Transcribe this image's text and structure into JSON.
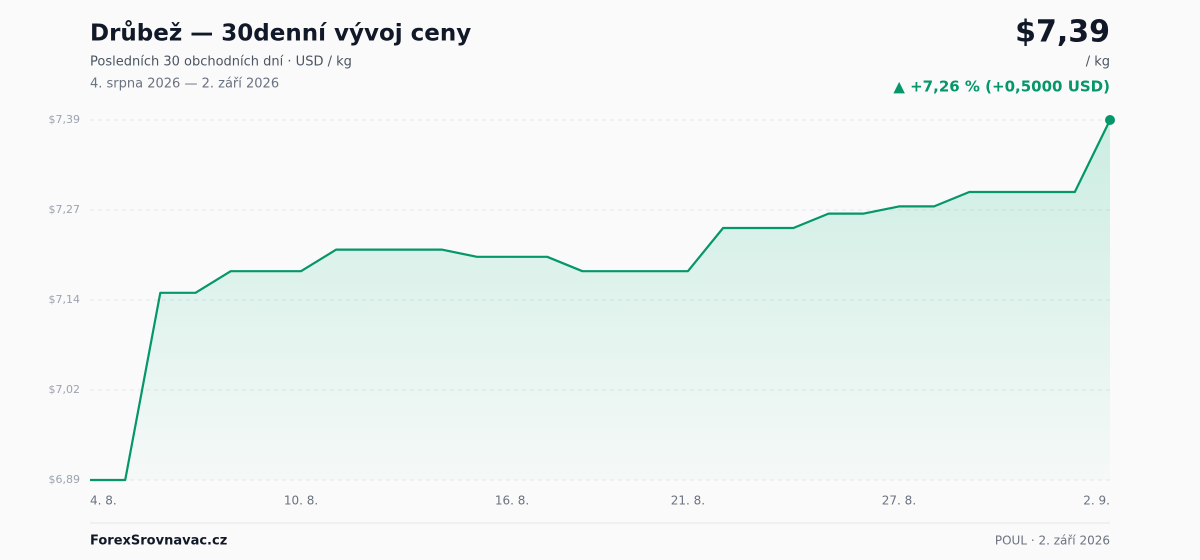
{
  "chart_data": {
    "type": "line",
    "title": "Drůbež — 30denní vývoj ceny",
    "subtitle": "Posledních 30 obchodních dní · USD / kg",
    "date_range": "4. srpna 2026 — 2. září 2026",
    "price_label": "$7,39",
    "unit": "/ kg",
    "change_label": "▲ +7,26 % (+0,5000 USD)",
    "footer_brand": "ForexSrovnavac.cz",
    "footer_note": "POUL · 2. září 2026",
    "categories": [
      "4. 8.",
      null,
      null,
      null,
      null,
      null,
      "10. 8.",
      null,
      null,
      null,
      null,
      null,
      "16. 8.",
      null,
      null,
      null,
      null,
      "21. 8.",
      null,
      null,
      null,
      null,
      null,
      "27. 8.",
      null,
      null,
      null,
      null,
      null,
      "2. 9."
    ],
    "values": [
      6.89,
      6.89,
      7.15,
      7.15,
      7.18,
      7.18,
      7.18,
      7.21,
      7.21,
      7.21,
      7.21,
      7.2,
      7.2,
      7.2,
      7.18,
      7.18,
      7.18,
      7.18,
      7.24,
      7.24,
      7.24,
      7.26,
      7.26,
      7.27,
      7.27,
      7.29,
      7.29,
      7.29,
      7.29,
      7.39
    ],
    "color": "#059669",
    "ylim": [
      6.89,
      7.39
    ],
    "yticks": [
      {
        "value": 6.89,
        "label": "$6,89"
      },
      {
        "value": 7.015,
        "label": "$7,02"
      },
      {
        "value": 7.14,
        "label": "$7,14"
      },
      {
        "value": 7.265,
        "label": "$7,27"
      },
      {
        "value": 7.39,
        "label": "$7,39"
      }
    ],
    "grid": true
  }
}
